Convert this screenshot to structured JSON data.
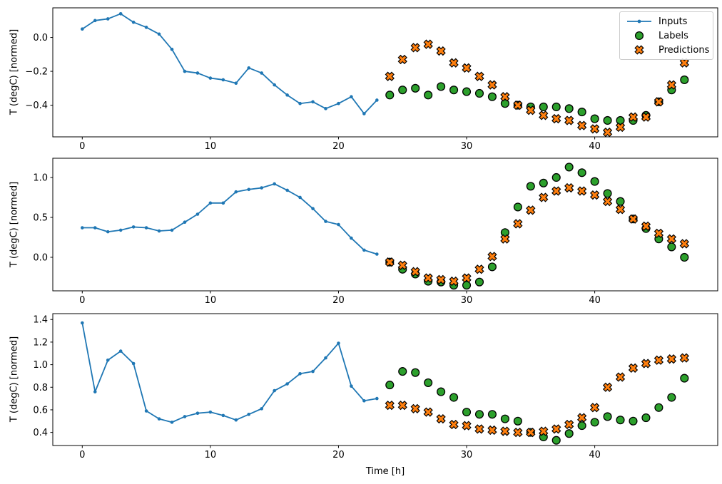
{
  "figure": {
    "background": "#ffffff",
    "xlabel": "Time [h]",
    "ylabel": "T (degC) [normed]",
    "marker_edge_color": "#000000",
    "legend": {
      "position": "upper-right-of-first-subplot",
      "edge_color": "#cccccc",
      "items": [
        {
          "label": "Inputs",
          "marker": "line-dot",
          "color": "#1f77b4"
        },
        {
          "label": "Labels",
          "marker": "circle",
          "color": "#2ca02c"
        },
        {
          "label": "Predictions",
          "marker": "x",
          "color": "#ff7f0e"
        }
      ]
    }
  },
  "chart_data": [
    {
      "type": "line",
      "subplot": 1,
      "title": "",
      "ylabel": "T (degC) [normed]",
      "xlabel": "Time [h]",
      "grid": false,
      "xlim": [
        -2.3,
        49.6
      ],
      "ylim": [
        -0.587,
        0.175
      ],
      "xticks": [
        0,
        10,
        20,
        30,
        40
      ],
      "xtick_labels": [
        "0",
        "10",
        "20",
        "30",
        "40"
      ],
      "yticks": [
        0.0,
        -0.2,
        -0.4
      ],
      "ytick_labels": [
        "0.0",
        "−0.2",
        "−0.4"
      ],
      "series": [
        {
          "name": "Inputs",
          "marker": "line-dot",
          "color": "#1f77b4",
          "x_start": 0,
          "values": [
            0.05,
            0.1,
            0.11,
            0.14,
            0.09,
            0.06,
            0.02,
            -0.07,
            -0.2,
            -0.21,
            -0.24,
            -0.25,
            -0.27,
            -0.18,
            -0.21,
            -0.28,
            -0.34,
            -0.39,
            -0.38,
            -0.42,
            -0.39,
            -0.35,
            -0.45,
            -0.37
          ]
        },
        {
          "name": "Labels",
          "marker": "circle",
          "color": "#2ca02c",
          "x_start": 24,
          "values": [
            -0.34,
            -0.31,
            -0.3,
            -0.34,
            -0.29,
            -0.31,
            -0.32,
            -0.33,
            -0.35,
            -0.39,
            -0.4,
            -0.41,
            -0.41,
            -0.41,
            -0.42,
            -0.44,
            -0.48,
            -0.49,
            -0.49,
            -0.49,
            -0.46,
            -0.38,
            -0.31,
            -0.25
          ]
        },
        {
          "name": "Predictions",
          "marker": "x",
          "color": "#ff7f0e",
          "x_start": 24,
          "values": [
            -0.23,
            -0.13,
            -0.06,
            -0.04,
            -0.08,
            -0.15,
            -0.18,
            -0.23,
            -0.28,
            -0.35,
            -0.4,
            -0.43,
            -0.46,
            -0.48,
            -0.49,
            -0.52,
            -0.54,
            -0.56,
            -0.53,
            -0.47,
            -0.47,
            -0.38,
            -0.28,
            -0.15
          ]
        }
      ]
    },
    {
      "type": "line",
      "subplot": 2,
      "title": "",
      "ylabel": "T (degC) [normed]",
      "xlabel": "Time [h]",
      "grid": false,
      "xlim": [
        -2.3,
        49.6
      ],
      "ylim": [
        -0.42,
        1.241
      ],
      "xticks": [
        0,
        10,
        20,
        30,
        40
      ],
      "xtick_labels": [
        "0",
        "10",
        "20",
        "30",
        "40"
      ],
      "yticks": [
        1.0,
        0.5,
        0.0
      ],
      "ytick_labels": [
        "1.0",
        "0.5",
        "0.0"
      ],
      "series": [
        {
          "name": "Inputs",
          "marker": "line-dot",
          "color": "#1f77b4",
          "x_start": 0,
          "values": [
            0.37,
            0.37,
            0.32,
            0.34,
            0.38,
            0.37,
            0.33,
            0.34,
            0.44,
            0.54,
            0.68,
            0.68,
            0.82,
            0.85,
            0.87,
            0.92,
            0.84,
            0.75,
            0.61,
            0.45,
            0.41,
            0.24,
            0.09,
            0.04
          ]
        },
        {
          "name": "Labels",
          "marker": "circle",
          "color": "#2ca02c",
          "x_start": 24,
          "values": [
            -0.06,
            -0.15,
            -0.21,
            -0.3,
            -0.31,
            -0.35,
            -0.35,
            -0.31,
            -0.12,
            0.31,
            0.63,
            0.89,
            0.93,
            1.0,
            1.13,
            1.06,
            0.95,
            0.8,
            0.7,
            0.48,
            0.36,
            0.23,
            0.13,
            0.0
          ]
        },
        {
          "name": "Predictions",
          "marker": "x",
          "color": "#ff7f0e",
          "x_start": 24,
          "values": [
            -0.06,
            -0.1,
            -0.18,
            -0.26,
            -0.28,
            -0.3,
            -0.26,
            -0.15,
            0.01,
            0.23,
            0.42,
            0.59,
            0.75,
            0.83,
            0.87,
            0.83,
            0.78,
            0.7,
            0.6,
            0.48,
            0.39,
            0.3,
            0.23,
            0.17
          ]
        }
      ]
    },
    {
      "type": "line",
      "subplot": 3,
      "title": "",
      "ylabel": "T (degC) [normed]",
      "xlabel": "Time [h]",
      "grid": false,
      "xlim": [
        -2.3,
        49.6
      ],
      "ylim": [
        0.284,
        1.452
      ],
      "xticks": [
        0,
        10,
        20,
        30,
        40
      ],
      "xtick_labels": [
        "0",
        "10",
        "20",
        "30",
        "40"
      ],
      "yticks": [
        1.4,
        1.2,
        1.0,
        0.8,
        0.6,
        0.4
      ],
      "ytick_labels": [
        "1.4",
        "1.2",
        "1.0",
        "0.8",
        "0.6",
        "0.4"
      ],
      "series": [
        {
          "name": "Inputs",
          "marker": "line-dot",
          "color": "#1f77b4",
          "x_start": 0,
          "values": [
            1.37,
            0.76,
            1.04,
            1.12,
            1.01,
            0.59,
            0.52,
            0.49,
            0.54,
            0.57,
            0.58,
            0.55,
            0.51,
            0.56,
            0.61,
            0.77,
            0.83,
            0.92,
            0.94,
            1.06,
            1.19,
            0.81,
            0.68,
            0.7
          ]
        },
        {
          "name": "Labels",
          "marker": "circle",
          "color": "#2ca02c",
          "x_start": 24,
          "values": [
            0.82,
            0.94,
            0.93,
            0.84,
            0.76,
            0.71,
            0.58,
            0.56,
            0.56,
            0.52,
            0.5,
            0.4,
            0.36,
            0.33,
            0.39,
            0.46,
            0.49,
            0.54,
            0.51,
            0.5,
            0.53,
            0.62,
            0.71,
            0.88
          ]
        },
        {
          "name": "Predictions",
          "marker": "x",
          "color": "#ff7f0e",
          "x_start": 24,
          "values": [
            0.64,
            0.64,
            0.61,
            0.58,
            0.52,
            0.47,
            0.46,
            0.43,
            0.42,
            0.41,
            0.4,
            0.4,
            0.41,
            0.43,
            0.47,
            0.53,
            0.62,
            0.8,
            0.89,
            0.97,
            1.01,
            1.04,
            1.05,
            1.06
          ]
        }
      ]
    }
  ]
}
